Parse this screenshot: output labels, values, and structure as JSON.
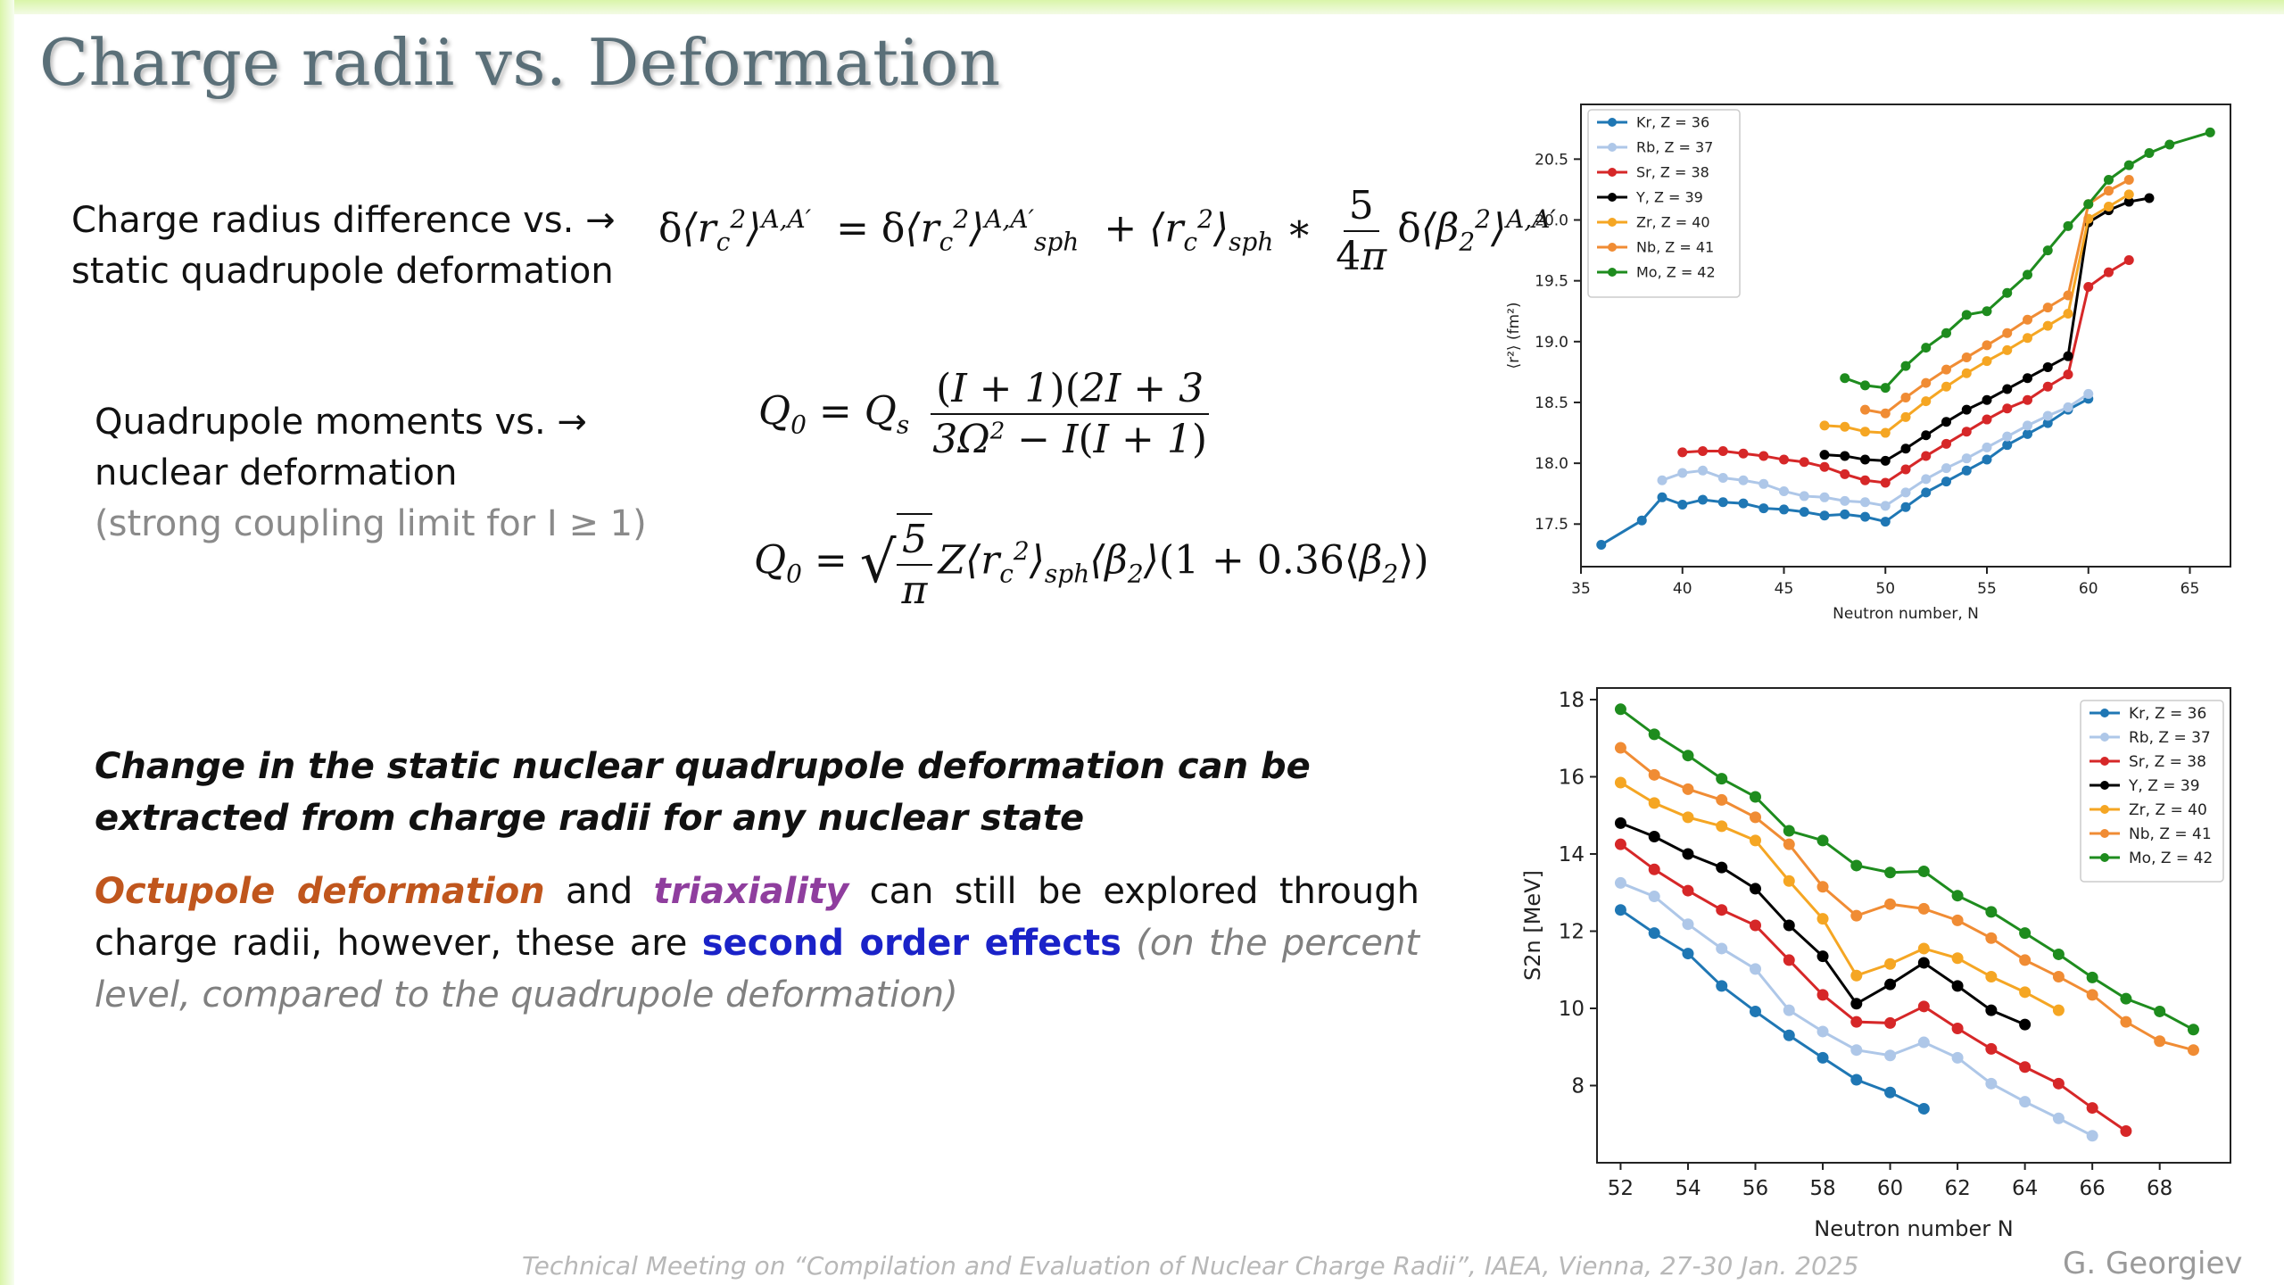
{
  "slide": {
    "title": "Charge radii vs. Deformation",
    "line1a": "Charge radius difference vs. →",
    "line1b": "static quadrupole deformation",
    "line2a": "Quadrupole moments vs. →",
    "line2b": "nuclear deformation",
    "line2c": "(strong coupling limit for I ≥ 1)",
    "statement": "Change in the static nuclear quadrupole deformation can be extracted from charge radii for any nuclear state",
    "para_octupole": "Octupole deformation",
    "para_and": " and ",
    "para_triax": "triaxiality",
    "para_mid": " can still be explored through charge radii, however, these are ",
    "para_second": "second order effects",
    "para_paren": " (on the percent level, compared to the quadrupole deformation)",
    "footer": "Technical Meeting on “Compilation and Evaluation of Nuclear Charge Radii”, IAEA, Vienna, 27-30 Jan. 2025",
    "author": "G. Georgiev"
  },
  "chart_data": [
    {
      "type": "line",
      "xlabel": "Neutron number, N",
      "ylabel": "⟨r²⟩ (fm²)",
      "xlim": [
        35,
        67
      ],
      "ylim": [
        17.15,
        20.95
      ],
      "xticks": [
        35,
        40,
        45,
        50,
        55,
        60,
        65
      ],
      "yticks": [
        17.5,
        18.0,
        18.5,
        19.0,
        19.5,
        20.0,
        20.5
      ],
      "legend": "top-left",
      "series": [
        {
          "name": "Kr, Z = 36",
          "color": "#1f77b4",
          "x": [
            36,
            38,
            39,
            40,
            41,
            42,
            43,
            44,
            45,
            46,
            47,
            48,
            49,
            50,
            51,
            52,
            53,
            54,
            55,
            56,
            57,
            58,
            59,
            60
          ],
          "y": [
            17.33,
            17.53,
            17.72,
            17.66,
            17.7,
            17.68,
            17.67,
            17.63,
            17.62,
            17.6,
            17.57,
            17.58,
            17.56,
            17.52,
            17.64,
            17.76,
            17.85,
            17.94,
            18.03,
            18.15,
            18.24,
            18.33,
            18.44,
            18.53
          ]
        },
        {
          "name": "Rb, Z = 37",
          "color": "#aec7e8",
          "x": [
            39,
            40,
            41,
            42,
            43,
            44,
            45,
            46,
            47,
            48,
            49,
            50,
            51,
            52,
            53,
            54,
            55,
            56,
            57,
            58,
            59,
            60
          ],
          "y": [
            17.86,
            17.92,
            17.94,
            17.88,
            17.86,
            17.83,
            17.77,
            17.73,
            17.72,
            17.69,
            17.68,
            17.65,
            17.76,
            17.87,
            17.96,
            18.04,
            18.13,
            18.22,
            18.31,
            18.39,
            18.46,
            18.57
          ]
        },
        {
          "name": "Sr, Z = 38",
          "color": "#d62728",
          "x": [
            40,
            41,
            42,
            43,
            44,
            45,
            46,
            47,
            48,
            49,
            50,
            51,
            52,
            53,
            54,
            55,
            56,
            57,
            58,
            59,
            60,
            61,
            62
          ],
          "y": [
            18.09,
            18.1,
            18.1,
            18.08,
            18.06,
            18.03,
            18.01,
            17.97,
            17.91,
            17.86,
            17.84,
            17.95,
            18.06,
            18.16,
            18.26,
            18.36,
            18.45,
            18.52,
            18.63,
            18.73,
            19.45,
            19.57,
            19.67
          ]
        },
        {
          "name": "Y, Z = 39",
          "color": "#000000",
          "x": [
            47,
            48,
            49,
            50,
            51,
            52,
            53,
            54,
            55,
            56,
            57,
            58,
            59,
            60,
            61,
            62,
            63
          ],
          "y": [
            18.07,
            18.06,
            18.03,
            18.02,
            18.12,
            18.23,
            18.34,
            18.44,
            18.52,
            18.61,
            18.7,
            18.79,
            18.88,
            19.98,
            20.08,
            20.15,
            20.18
          ]
        },
        {
          "name": "Zr, Z = 40",
          "color": "#f5a623",
          "x": [
            47,
            48,
            49,
            50,
            51,
            52,
            53,
            54,
            55,
            56,
            57,
            58,
            59,
            60,
            61,
            62
          ],
          "y": [
            18.31,
            18.3,
            18.26,
            18.25,
            18.38,
            18.51,
            18.63,
            18.74,
            18.84,
            18.93,
            19.03,
            19.13,
            19.23,
            20.01,
            20.11,
            20.21
          ]
        },
        {
          "name": "Nb, Z = 41",
          "color": "#f08c34",
          "x": [
            49,
            50,
            51,
            52,
            53,
            54,
            55,
            56,
            57,
            58,
            59,
            60,
            61,
            62
          ],
          "y": [
            18.44,
            18.41,
            18.54,
            18.66,
            18.77,
            18.87,
            18.97,
            19.07,
            19.18,
            19.28,
            19.38,
            20.13,
            20.24,
            20.33
          ]
        },
        {
          "name": "Mo, Z = 42",
          "color": "#1e8c1e",
          "x": [
            48,
            49,
            50,
            51,
            52,
            53,
            54,
            55,
            56,
            57,
            58,
            59,
            60,
            61,
            62,
            63,
            64,
            66
          ],
          "y": [
            18.7,
            18.64,
            18.62,
            18.8,
            18.95,
            19.07,
            19.22,
            19.25,
            19.4,
            19.55,
            19.75,
            19.95,
            20.13,
            20.33,
            20.45,
            20.55,
            20.62,
            20.72
          ]
        }
      ]
    },
    {
      "type": "line",
      "xlabel": "Neutron number N",
      "ylabel": "S2n [MeV]",
      "xlim": [
        51.3,
        70.1
      ],
      "ylim": [
        6.0,
        18.3
      ],
      "xticks": [
        52,
        54,
        56,
        58,
        60,
        62,
        64,
        66,
        68
      ],
      "yticks": [
        8,
        10,
        12,
        14,
        16,
        18
      ],
      "legend": "top-right",
      "series": [
        {
          "name": "Kr, Z = 36",
          "color": "#1f77b4",
          "x": [
            52,
            53,
            54,
            55,
            56,
            57,
            58,
            59,
            60,
            61
          ],
          "y": [
            12.55,
            11.95,
            11.42,
            10.58,
            9.92,
            9.3,
            8.72,
            8.15,
            7.82,
            7.4
          ]
        },
        {
          "name": "Rb, Z = 37",
          "color": "#aec7e8",
          "x": [
            52,
            53,
            54,
            55,
            56,
            57,
            58,
            59,
            60,
            61,
            62,
            63,
            64,
            65,
            66
          ],
          "y": [
            13.25,
            12.9,
            12.18,
            11.55,
            11.02,
            9.95,
            9.4,
            8.92,
            8.78,
            9.12,
            8.72,
            8.05,
            7.58,
            7.15,
            6.7
          ]
        },
        {
          "name": "Sr, Z = 38",
          "color": "#d62728",
          "x": [
            52,
            53,
            54,
            55,
            56,
            57,
            58,
            59,
            60,
            61,
            62,
            63,
            64,
            65,
            66,
            67
          ],
          "y": [
            14.25,
            13.6,
            13.05,
            12.55,
            12.15,
            11.25,
            10.35,
            9.65,
            9.62,
            10.05,
            9.48,
            8.95,
            8.48,
            8.05,
            7.42,
            6.82
          ]
        },
        {
          "name": "Y, Z = 39",
          "color": "#000000",
          "x": [
            52,
            53,
            54,
            55,
            56,
            57,
            58,
            59,
            60,
            61,
            62,
            63,
            64
          ],
          "y": [
            14.8,
            14.45,
            14.0,
            13.65,
            13.1,
            12.15,
            11.35,
            10.12,
            10.62,
            11.18,
            10.58,
            9.95,
            9.58
          ]
        },
        {
          "name": "Zr, Z = 40",
          "color": "#f5a623",
          "x": [
            52,
            53,
            54,
            55,
            56,
            57,
            58,
            59,
            60,
            61,
            62,
            63,
            64,
            65
          ],
          "y": [
            15.85,
            15.32,
            14.95,
            14.72,
            14.35,
            13.3,
            12.32,
            10.85,
            11.15,
            11.55,
            11.3,
            10.82,
            10.42,
            9.95
          ]
        },
        {
          "name": "Nb, Z = 41",
          "color": "#f08c34",
          "x": [
            52,
            53,
            54,
            55,
            56,
            57,
            58,
            59,
            60,
            61,
            62,
            63,
            64,
            65,
            66,
            67,
            68,
            69
          ],
          "y": [
            16.75,
            16.05,
            15.68,
            15.4,
            14.95,
            14.25,
            13.15,
            12.4,
            12.7,
            12.58,
            12.28,
            11.82,
            11.25,
            10.82,
            10.35,
            9.65,
            9.15,
            8.92
          ]
        },
        {
          "name": "Mo, Z = 42",
          "color": "#1e8c1e",
          "x": [
            52,
            53,
            54,
            55,
            56,
            57,
            58,
            59,
            60,
            61,
            62,
            63,
            64,
            65,
            66,
            67,
            68,
            69
          ],
          "y": [
            17.75,
            17.1,
            16.55,
            15.95,
            15.48,
            14.6,
            14.35,
            13.7,
            13.52,
            13.55,
            12.92,
            12.5,
            11.95,
            11.4,
            10.8,
            10.25,
            9.92,
            9.45
          ]
        }
      ]
    }
  ]
}
